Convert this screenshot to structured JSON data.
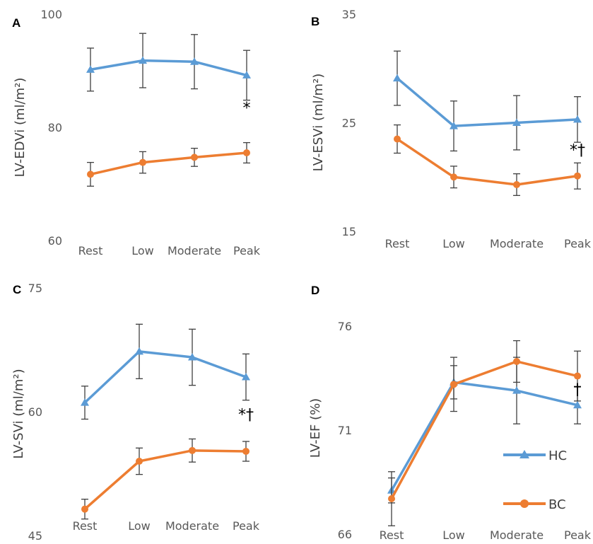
{
  "colors": {
    "HC": "#5b9bd5",
    "BC": "#ed7d31",
    "errorbar": "#404040"
  },
  "legend": [
    {
      "label": "HC",
      "marker": "triangle"
    },
    {
      "label": "BC",
      "marker": "circle"
    }
  ],
  "chart_data": [
    {
      "panel": "A",
      "type": "line",
      "ylabel": "LV-EDVi (ml/m²)",
      "ylim": [
        60,
        100
      ],
      "yticks": [
        60,
        80,
        100
      ],
      "categories": [
        "Rest",
        "Low",
        "Moderate",
        "Peak"
      ],
      "series": [
        {
          "name": "HC",
          "marker": "triangle",
          "values": [
            90.2,
            91.8,
            91.6,
            89.2
          ],
          "err": [
            3.8,
            4.8,
            4.8,
            4.4
          ]
        },
        {
          "name": "BC",
          "marker": "circle",
          "values": [
            71.7,
            73.8,
            74.7,
            75.5
          ],
          "err": [
            2.1,
            1.9,
            1.6,
            1.8
          ]
        }
      ],
      "annotation": {
        "text": "*",
        "category": "Peak",
        "y": 82.5
      }
    },
    {
      "panel": "B",
      "type": "line",
      "ylabel": "LV-ESVi (ml/m²)",
      "ylim": [
        15,
        35
      ],
      "yticks": [
        15,
        25,
        35
      ],
      "categories": [
        "Rest",
        "Low",
        "Moderate",
        "Peak"
      ],
      "series": [
        {
          "name": "HC",
          "marker": "triangle",
          "values": [
            29.1,
            24.7,
            25.0,
            25.3
          ],
          "err": [
            2.5,
            2.3,
            2.5,
            2.1
          ]
        },
        {
          "name": "BC",
          "marker": "circle",
          "values": [
            23.5,
            20.0,
            19.3,
            20.1
          ],
          "err": [
            1.3,
            1.0,
            1.0,
            1.2
          ]
        }
      ],
      "annotation": {
        "text": "*†",
        "category": "Peak",
        "y": 22.0
      }
    },
    {
      "panel": "C",
      "type": "line",
      "ylabel": "LV-SVi (ml/m²)",
      "ylim": [
        45,
        75
      ],
      "yticks": [
        45,
        60,
        75
      ],
      "categories": [
        "Rest",
        "Low",
        "Moderate",
        "Peak"
      ],
      "series": [
        {
          "name": "HC",
          "marker": "triangle",
          "values": [
            61.1,
            67.3,
            66.6,
            64.2
          ],
          "err": [
            2.0,
            3.3,
            3.4,
            2.8
          ]
        },
        {
          "name": "BC",
          "marker": "circle",
          "values": [
            48.2,
            54.0,
            55.3,
            55.2
          ],
          "err": [
            1.2,
            1.6,
            1.4,
            1.2
          ]
        }
      ],
      "annotation": {
        "text": "*†",
        "category": "Peak",
        "y": 59.0
      }
    },
    {
      "panel": "D",
      "type": "line",
      "ylabel": "LV-EF (%)",
      "ylim": [
        66,
        76
      ],
      "yticks": [
        66,
        71,
        76
      ],
      "categories": [
        "Rest",
        "Low",
        "Moderate",
        "Peak"
      ],
      "series": [
        {
          "name": "HC",
          "marker": "triangle",
          "values": [
            68.1,
            73.3,
            72.9,
            72.2
          ],
          "err": [
            0.6,
            0.8,
            1.6,
            0.9
          ]
        },
        {
          "name": "BC",
          "marker": "circle",
          "values": [
            67.7,
            73.2,
            74.3,
            73.6
          ],
          "err": [
            1.3,
            1.3,
            1.0,
            1.2
          ]
        }
      ],
      "annotation": {
        "text": "†",
        "category": "Peak",
        "y": 72.7
      }
    }
  ]
}
